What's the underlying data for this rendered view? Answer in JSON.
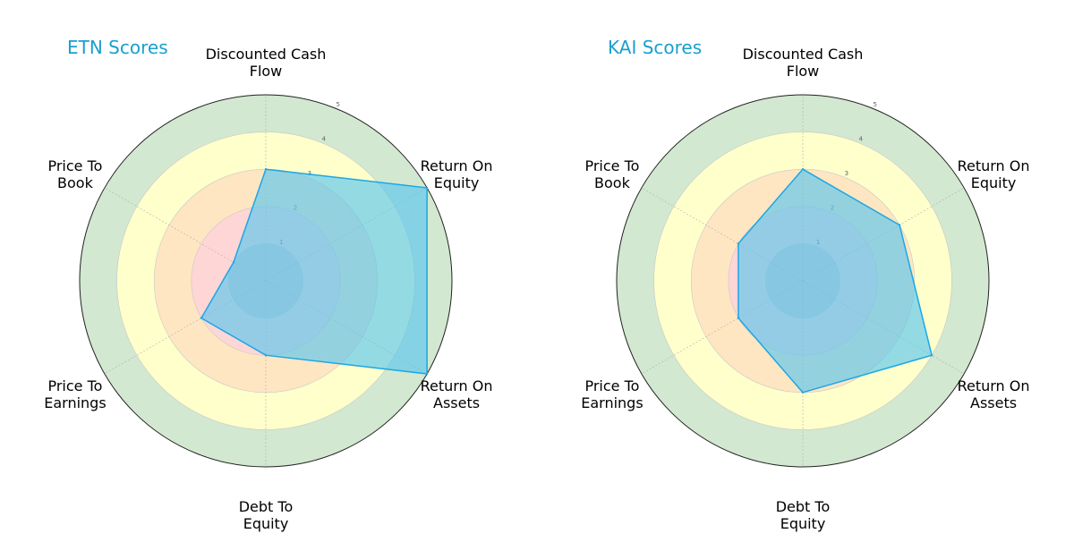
{
  "chart_data": [
    {
      "type": "radar",
      "title": "ETN Scores",
      "axes": [
        [
          "Discounted Cash",
          "Flow"
        ],
        [
          "Return On",
          "Equity"
        ],
        [
          "Return On",
          "Assets"
        ],
        [
          "Debt To",
          "Equity"
        ],
        [
          "Price To",
          "Earnings"
        ],
        [
          "Price To",
          "Book"
        ]
      ],
      "values": [
        3,
        5,
        5,
        2,
        2,
        1
      ],
      "rlim": [
        0,
        5
      ],
      "ticks": [
        "1",
        "2",
        "3",
        "4",
        "5"
      ]
    },
    {
      "type": "radar",
      "title": "KAI Scores",
      "axes": [
        [
          "Discounted Cash",
          "Flow"
        ],
        [
          "Return On",
          "Equity"
        ],
        [
          "Return On",
          "Assets"
        ],
        [
          "Debt To",
          "Equity"
        ],
        [
          "Price To",
          "Earnings"
        ],
        [
          "Price To",
          "Book"
        ]
      ],
      "values": [
        3,
        3,
        4,
        3,
        2,
        2
      ],
      "rlim": [
        0,
        5
      ],
      "ticks": [
        "1",
        "2",
        "3",
        "4",
        "5"
      ]
    }
  ],
  "colors": {
    "title": "#1a9fcf",
    "series_fill": "#5bc6ee",
    "series_stroke": "#1ba7e6",
    "band_1": "#bfbfbf",
    "band_2": "#ffd6d6",
    "band_3": "#ffe6c2",
    "band_4": "#ffffcc",
    "band_5": "#d2e8d0"
  }
}
